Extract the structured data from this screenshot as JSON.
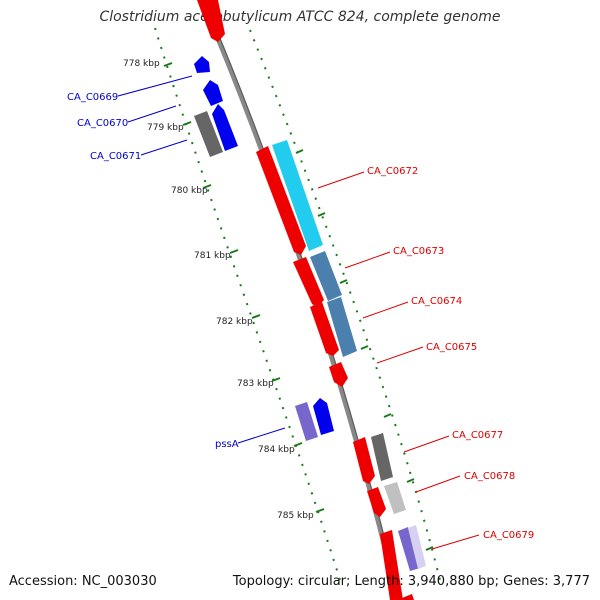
{
  "title": "Clostridium acetobutylicum ATCC 824, complete genome",
  "footer": {
    "accession": "Accession: NC_003030",
    "summary": "Topology: circular; Length: 3,940,880 bp; Genes: 3,777"
  },
  "ticks": [
    {
      "label": "778 kbp"
    },
    {
      "label": "779 kbp"
    },
    {
      "label": "780 kbp"
    },
    {
      "label": "781 kbp"
    },
    {
      "label": "782 kbp"
    },
    {
      "label": "783 kbp"
    },
    {
      "label": "784 kbp"
    },
    {
      "label": "785 kbp"
    }
  ],
  "gene_labels": [
    {
      "text": "CA_C0669",
      "color": "#0000cc"
    },
    {
      "text": "CA_C0670",
      "color": "#0000cc"
    },
    {
      "text": "CA_C0671",
      "color": "#0000cc"
    },
    {
      "text": "CA_C0672",
      "color": "#dd0000"
    },
    {
      "text": "CA_C0673",
      "color": "#dd0000"
    },
    {
      "text": "CA_C0674",
      "color": "#dd0000"
    },
    {
      "text": "CA_C0675",
      "color": "#dd0000"
    },
    {
      "text": "pssA",
      "color": "#0000cc"
    },
    {
      "text": "CA_C0677",
      "color": "#dd0000"
    },
    {
      "text": "CA_C0678",
      "color": "#dd0000"
    },
    {
      "text": "CA_C0679",
      "color": "#dd0000"
    }
  ],
  "colors": {
    "backbone": "#888888",
    "tick": "#1a7a1a",
    "forward_cds": "#ee0000",
    "reverse_cds": "#0000ee",
    "cyan_feature": "#22ccee",
    "steelblue_feature": "#4a7fae",
    "gray_feature": "#666666",
    "lightgray_feature": "#c0c0c0",
    "purple_feature": "#7766cc"
  }
}
